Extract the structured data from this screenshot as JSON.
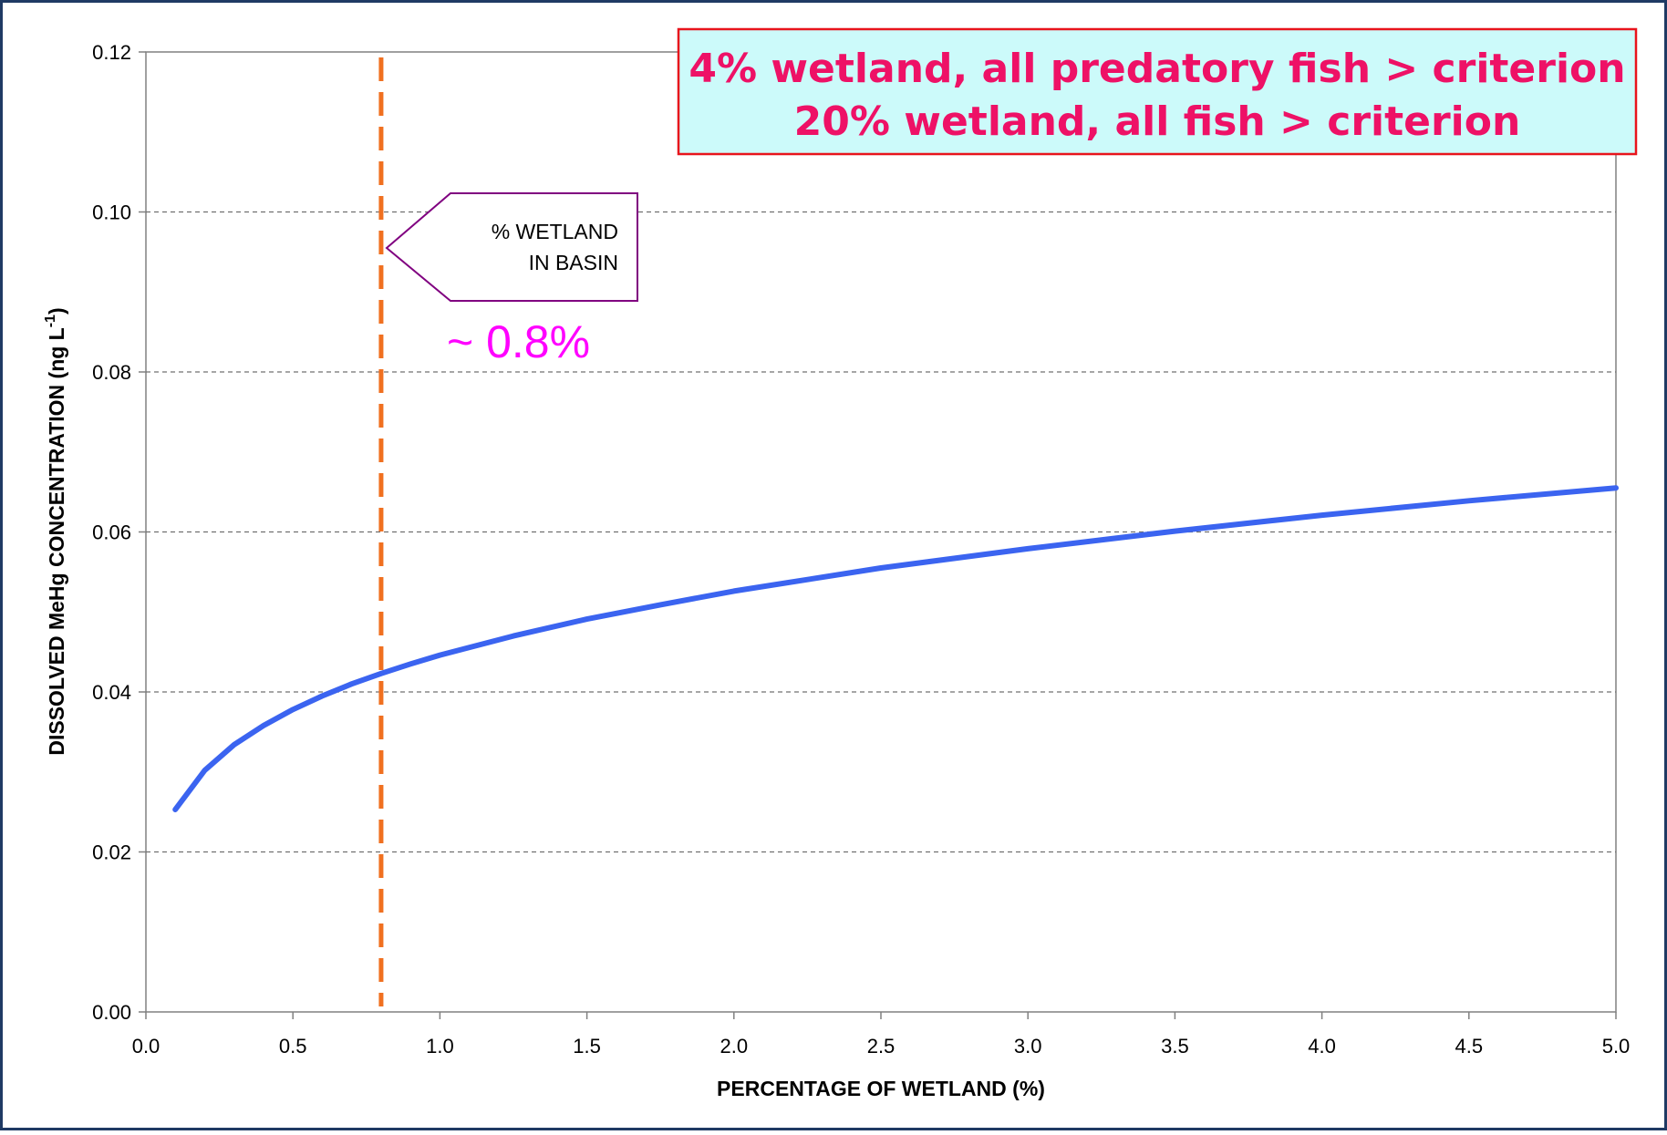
{
  "chart_data": {
    "type": "line",
    "xlabel": "PERCENTAGE OF WETLAND (%)",
    "ylabel": "DISSOLVED MeHg CONCENTRATION (ng L",
    "ylabel_superscript": "-1",
    "ylabel_close": ")",
    "xlim": [
      0,
      5
    ],
    "ylim": [
      0,
      0.12
    ],
    "x_ticks": [
      "0.0",
      "0.5",
      "1.0",
      "1.5",
      "2.0",
      "2.5",
      "3.0",
      "3.5",
      "4.0",
      "4.5",
      "5.0"
    ],
    "y_ticks": [
      "0.00",
      "0.02",
      "0.04",
      "0.06",
      "0.08",
      "0.10",
      "0.12"
    ],
    "grid": "horizontal dashed",
    "line_color": "#3b64f0",
    "series": [
      {
        "x": [
          0.1,
          0.2,
          0.3,
          0.4,
          0.5,
          0.6,
          0.7,
          0.8,
          0.9,
          1.0,
          1.25,
          1.5,
          1.75,
          2.0,
          2.5,
          3.0,
          3.5,
          4.0,
          4.5,
          5.0
        ],
        "y": [
          0.0253,
          0.0302,
          0.0334,
          0.0358,
          0.0378,
          0.0395,
          0.041,
          0.0423,
          0.0435,
          0.0446,
          0.047,
          0.0491,
          0.0509,
          0.0526,
          0.0555,
          0.0579,
          0.0601,
          0.0621,
          0.0639,
          0.0655
        ]
      }
    ],
    "reference_line": {
      "x": 0.8,
      "color": "#f07020",
      "style": "dashed"
    },
    "annotations": {
      "banner_line1": "4% wetland, all predatory fish > criterion",
      "banner_line2": "20% wetland, all fish > criterion",
      "banner_fill": "#ccfafa",
      "banner_border": "#e8141c",
      "banner_text_color": "#ee1166",
      "callout_line1": "% WETLAND",
      "callout_line2": "IN BASIN",
      "callout_border": "#800080",
      "approx_label": "~ 0.8%",
      "approx_color": "#ff00ff"
    },
    "frame_color": "#1f3a64"
  }
}
